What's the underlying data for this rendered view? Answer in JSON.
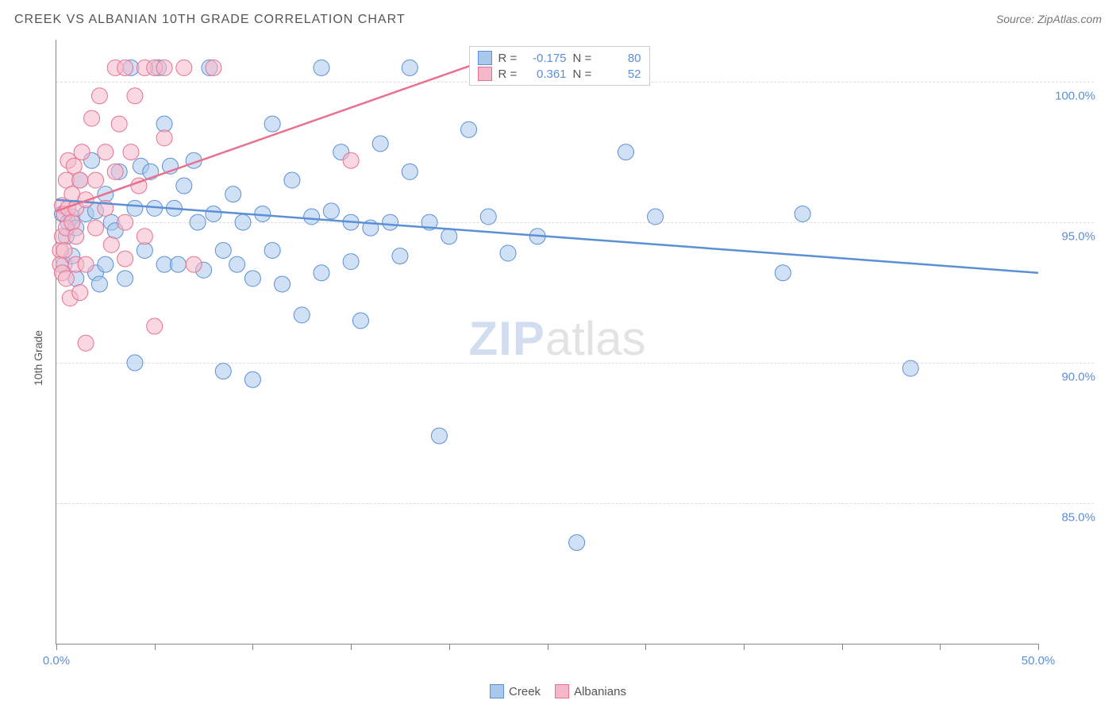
{
  "header": {
    "title": "CREEK VS ALBANIAN 10TH GRADE CORRELATION CHART",
    "source": "Source: ZipAtlas.com"
  },
  "watermark": {
    "part1": "ZIP",
    "part2": "atlas"
  },
  "chart": {
    "type": "scatter",
    "ylabel": "10th Grade",
    "xlim": [
      0,
      50
    ],
    "ylim": [
      80,
      101.5
    ],
    "xtick_positions": [
      0,
      5,
      10,
      15,
      20,
      25,
      30,
      35,
      40,
      45,
      50
    ],
    "xtick_labels": {
      "0": "0.0%",
      "50": "50.0%"
    },
    "ytick_positions": [
      85,
      90,
      95,
      100
    ],
    "ytick_labels": [
      "85.0%",
      "90.0%",
      "95.0%",
      "100.0%"
    ],
    "grid_color": "#dddddd",
    "axis_color": "#888888",
    "background_color": "#ffffff",
    "marker_radius": 10,
    "marker_opacity": 0.55,
    "line_width": 2.5,
    "series": [
      {
        "name": "Creek",
        "color_fill": "#a9c8ec",
        "color_stroke": "#5b8fd6",
        "R": "-0.175",
        "N": "80",
        "trend": {
          "x1": 0,
          "y1": 95.8,
          "x2": 50,
          "y2": 93.2
        },
        "points": [
          [
            0.3,
            95.3
          ],
          [
            0.4,
            93.5
          ],
          [
            0.5,
            94.5
          ],
          [
            0.6,
            95.0
          ],
          [
            0.8,
            93.8
          ],
          [
            0.8,
            95.2
          ],
          [
            1.0,
            94.8
          ],
          [
            1.0,
            93.0
          ],
          [
            1.2,
            96.5
          ],
          [
            1.5,
            95.3
          ],
          [
            1.8,
            97.2
          ],
          [
            2.0,
            95.4
          ],
          [
            2.0,
            93.2
          ],
          [
            2.2,
            92.8
          ],
          [
            2.5,
            96.0
          ],
          [
            2.5,
            93.5
          ],
          [
            2.8,
            95.0
          ],
          [
            3.0,
            94.7
          ],
          [
            3.2,
            96.8
          ],
          [
            3.5,
            93.0
          ],
          [
            3.8,
            100.5
          ],
          [
            4.0,
            95.5
          ],
          [
            4.0,
            90.0
          ],
          [
            4.3,
            97.0
          ],
          [
            4.5,
            94.0
          ],
          [
            4.8,
            96.8
          ],
          [
            5.0,
            95.5
          ],
          [
            5.2,
            100.5
          ],
          [
            5.5,
            93.5
          ],
          [
            5.5,
            98.5
          ],
          [
            5.8,
            97.0
          ],
          [
            6.0,
            95.5
          ],
          [
            6.2,
            93.5
          ],
          [
            6.5,
            96.3
          ],
          [
            7.0,
            97.2
          ],
          [
            7.2,
            95.0
          ],
          [
            7.5,
            93.3
          ],
          [
            7.8,
            100.5
          ],
          [
            8.0,
            95.3
          ],
          [
            8.5,
            94.0
          ],
          [
            8.5,
            89.7
          ],
          [
            9.0,
            96.0
          ],
          [
            9.2,
            93.5
          ],
          [
            9.5,
            95.0
          ],
          [
            10.0,
            93.0
          ],
          [
            10.0,
            89.4
          ],
          [
            10.5,
            95.3
          ],
          [
            11.0,
            94.0
          ],
          [
            11.0,
            98.5
          ],
          [
            11.5,
            92.8
          ],
          [
            12.0,
            96.5
          ],
          [
            12.5,
            91.7
          ],
          [
            13.0,
            95.2
          ],
          [
            13.5,
            93.2
          ],
          [
            13.5,
            100.5
          ],
          [
            14.0,
            95.4
          ],
          [
            14.5,
            97.5
          ],
          [
            15.0,
            93.6
          ],
          [
            15.0,
            95.0
          ],
          [
            15.5,
            91.5
          ],
          [
            16.0,
            94.8
          ],
          [
            16.5,
            97.8
          ],
          [
            17.0,
            95.0
          ],
          [
            17.5,
            93.8
          ],
          [
            18.0,
            96.8
          ],
          [
            18.0,
            100.5
          ],
          [
            19.0,
            95.0
          ],
          [
            19.5,
            87.4
          ],
          [
            20.0,
            94.5
          ],
          [
            21.0,
            98.3
          ],
          [
            22.0,
            95.2
          ],
          [
            22.0,
            100.5
          ],
          [
            23.0,
            93.9
          ],
          [
            24.5,
            94.5
          ],
          [
            26.5,
            83.6
          ],
          [
            29.0,
            97.5
          ],
          [
            30.5,
            95.2
          ],
          [
            37.0,
            93.2
          ],
          [
            38.0,
            95.3
          ],
          [
            43.5,
            89.8
          ]
        ]
      },
      {
        "name": "Albanians",
        "color_fill": "#f5b8c8",
        "color_stroke": "#e8718f",
        "R": "0.361",
        "N": "52",
        "trend": {
          "x1": 0,
          "y1": 95.4,
          "x2": 22,
          "y2": 100.8
        },
        "points": [
          [
            0.2,
            94.0
          ],
          [
            0.2,
            93.5
          ],
          [
            0.3,
            94.5
          ],
          [
            0.3,
            93.2
          ],
          [
            0.3,
            95.6
          ],
          [
            0.4,
            95.3
          ],
          [
            0.4,
            94.0
          ],
          [
            0.5,
            96.5
          ],
          [
            0.5,
            93.0
          ],
          [
            0.5,
            94.8
          ],
          [
            0.6,
            97.2
          ],
          [
            0.6,
            95.5
          ],
          [
            0.7,
            92.3
          ],
          [
            0.8,
            96.0
          ],
          [
            0.8,
            95.0
          ],
          [
            0.9,
            97.0
          ],
          [
            1.0,
            94.5
          ],
          [
            1.0,
            93.5
          ],
          [
            1.0,
            95.5
          ],
          [
            1.2,
            96.5
          ],
          [
            1.2,
            92.5
          ],
          [
            1.3,
            97.5
          ],
          [
            1.5,
            95.8
          ],
          [
            1.5,
            90.7
          ],
          [
            1.5,
            93.5
          ],
          [
            1.8,
            98.7
          ],
          [
            2.0,
            96.5
          ],
          [
            2.0,
            94.8
          ],
          [
            2.2,
            99.5
          ],
          [
            2.5,
            95.5
          ],
          [
            2.5,
            97.5
          ],
          [
            2.8,
            94.2
          ],
          [
            3.0,
            96.8
          ],
          [
            3.0,
            100.5
          ],
          [
            3.2,
            98.5
          ],
          [
            3.5,
            95.0
          ],
          [
            3.5,
            100.5
          ],
          [
            3.5,
            93.7
          ],
          [
            3.8,
            97.5
          ],
          [
            4.0,
            99.5
          ],
          [
            4.2,
            96.3
          ],
          [
            4.5,
            100.5
          ],
          [
            4.5,
            94.5
          ],
          [
            5.0,
            100.5
          ],
          [
            5.0,
            91.3
          ],
          [
            5.5,
            98.0
          ],
          [
            5.5,
            100.5
          ],
          [
            6.5,
            100.5
          ],
          [
            7.0,
            93.5
          ],
          [
            8.0,
            100.5
          ],
          [
            15.0,
            97.2
          ],
          [
            28.0,
            100.5
          ]
        ]
      }
    ]
  },
  "legend_bottom": [
    {
      "label": "Creek",
      "fill": "#a9c8ec",
      "stroke": "#5b8fd6"
    },
    {
      "label": "Albanians",
      "fill": "#f5b8c8",
      "stroke": "#e8718f"
    }
  ]
}
